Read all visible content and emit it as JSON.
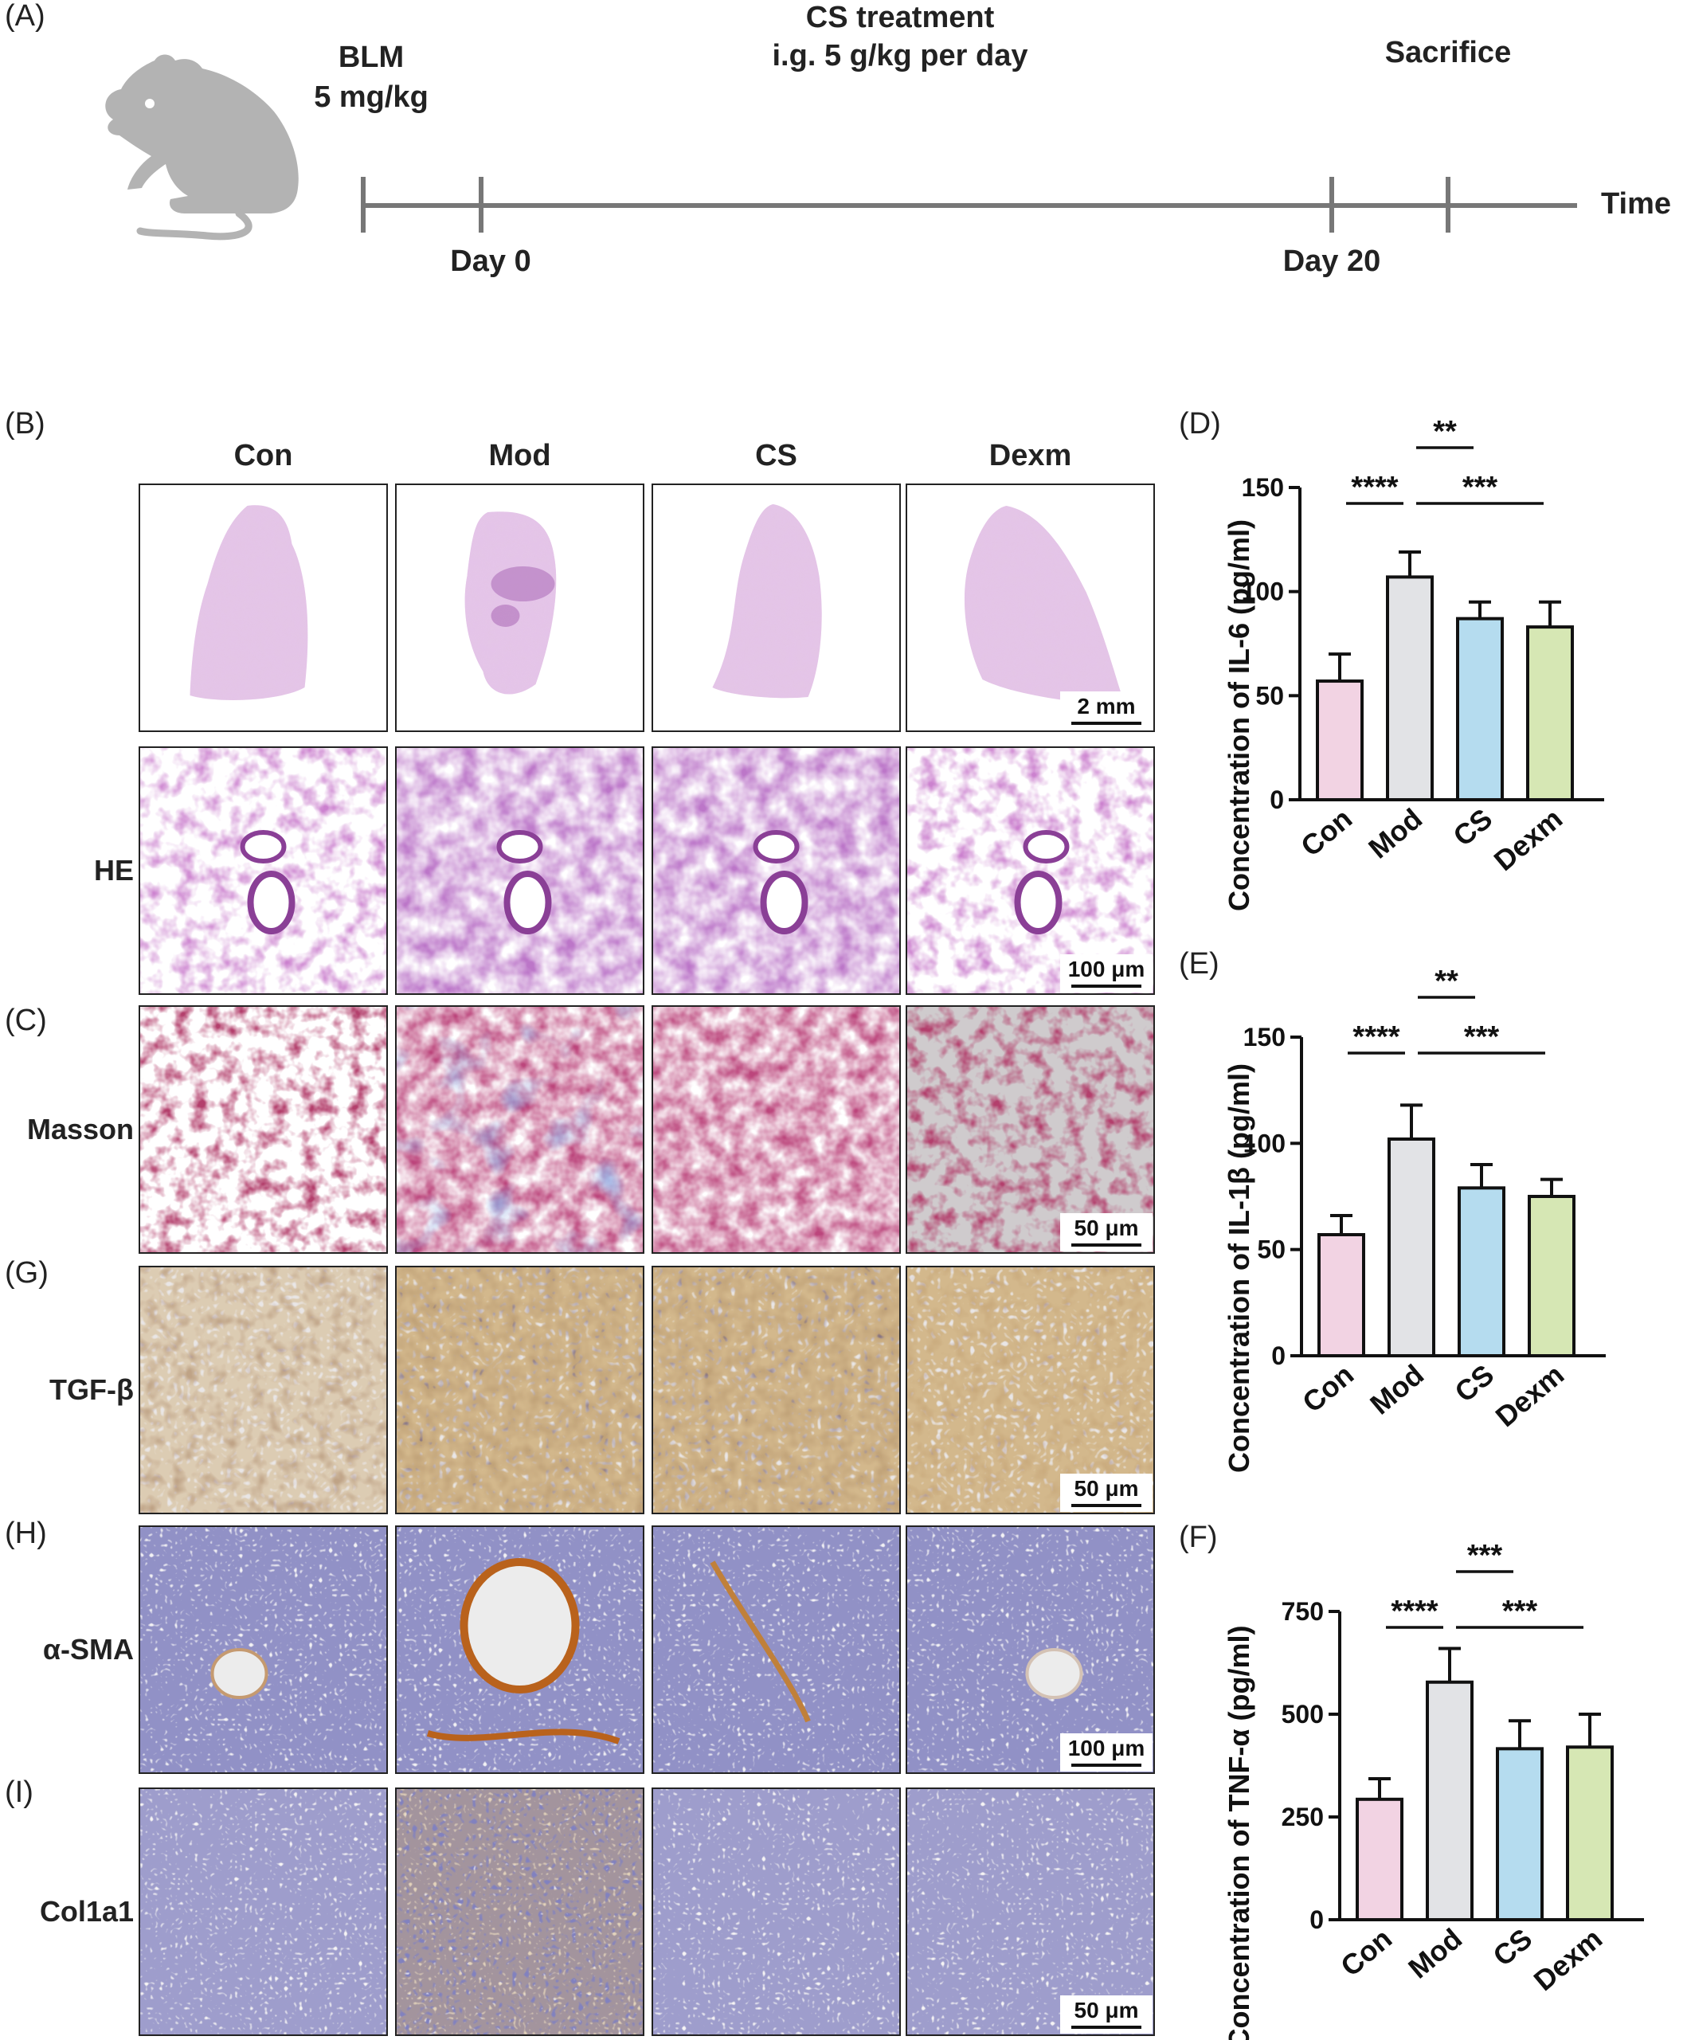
{
  "panel_letters": [
    "(A)",
    "(B)",
    "(C)",
    "(G)",
    "(H)",
    "(I)",
    "(D)",
    "(E)",
    "(F)"
  ],
  "timeline": {
    "blm_line1": "BLM",
    "blm_line2": "5 mg/kg",
    "cs_line1": "CS treatment",
    "cs_line2": "i.g. 5 g/kg per day",
    "sacrifice": "Sacrifice",
    "time": "Time",
    "day0": "Day 0",
    "day20": "Day 20"
  },
  "histology": {
    "columns": [
      "Con",
      "Mod",
      "CS",
      "Dexm"
    ],
    "rows": [
      {
        "label": "",
        "stain": "overview",
        "scale_bar": "2 mm"
      },
      {
        "label": "HE",
        "stain": "he",
        "scale_bar": "100 μm"
      },
      {
        "label": "Masson",
        "stain": "masson",
        "scale_bar": "50 μm"
      },
      {
        "label": "TGF-β",
        "stain": "ihc_tgf",
        "scale_bar": "50 μm"
      },
      {
        "label": "α-SMA",
        "stain": "ihc_sma",
        "scale_bar": "100 μm"
      },
      {
        "label": "Col1a1",
        "stain": "ihc_col",
        "scale_bar": "50 μm"
      }
    ]
  },
  "colors": {
    "Con": "#f2d3e3",
    "Mod": "#e2e3e6",
    "CS": "#b5dcef",
    "Dexm": "#d6e7b4",
    "timeline": "#777777",
    "mouse": "#b3b3b3"
  },
  "chart_data": [
    {
      "type": "bar",
      "panel": "(D)",
      "title": "",
      "ylabel": "Concentration of  IL-6 (pg/ml)",
      "categories": [
        "Con",
        "Mod",
        "CS",
        "Dexm"
      ],
      "values": [
        57,
        107,
        87,
        83
      ],
      "errors": [
        13,
        12,
        8,
        12
      ],
      "ylim": [
        0,
        150
      ],
      "yticks": [
        0,
        50,
        100,
        150
      ],
      "significance": [
        {
          "from": 0,
          "to": 1,
          "label": "****",
          "level": 1
        },
        {
          "from": 1,
          "to": 2,
          "label": "**",
          "level": 2
        },
        {
          "from": 1,
          "to": 3,
          "label": "***",
          "level": 1
        }
      ]
    },
    {
      "type": "bar",
      "panel": "(E)",
      "title": "",
      "ylabel": "Concentration of  IL-1β (pg/ml)",
      "categories": [
        "Con",
        "Mod",
        "CS",
        "Dexm"
      ],
      "values": [
        57,
        102,
        79,
        75
      ],
      "errors": [
        9,
        16,
        11,
        8
      ],
      "ylim": [
        0,
        150
      ],
      "yticks": [
        0,
        50,
        100,
        150
      ],
      "significance": [
        {
          "from": 0,
          "to": 1,
          "label": "****",
          "level": 1
        },
        {
          "from": 1,
          "to": 2,
          "label": "**",
          "level": 2
        },
        {
          "from": 1,
          "to": 3,
          "label": "***",
          "level": 1
        }
      ]
    },
    {
      "type": "bar",
      "panel": "(F)",
      "title": "",
      "ylabel": "Concentration of TNF-α (pg/ml)",
      "categories": [
        "Con",
        "Mod",
        "CS",
        "Dexm"
      ],
      "values": [
        293,
        578,
        416,
        420
      ],
      "errors": [
        50,
        82,
        68,
        80
      ],
      "ylim": [
        0,
        750
      ],
      "yticks": [
        0,
        250,
        500,
        750
      ],
      "significance": [
        {
          "from": 0,
          "to": 1,
          "label": "****",
          "level": 1
        },
        {
          "from": 1,
          "to": 2,
          "label": "***",
          "level": 2
        },
        {
          "from": 1,
          "to": 3,
          "label": "***",
          "level": 1
        }
      ]
    }
  ]
}
